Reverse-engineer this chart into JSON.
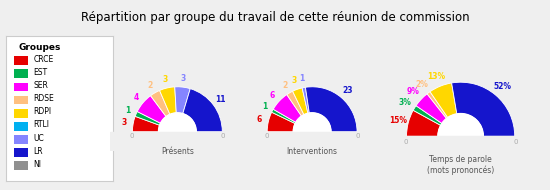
{
  "title": "Répartition par groupe du travail de cette réunion de commission",
  "groups": [
    "CRCE",
    "EST",
    "SER",
    "RDSE",
    "RDPI",
    "RTLI",
    "UC",
    "LR",
    "NI"
  ],
  "colors": [
    "#e60000",
    "#00b050",
    "#ff00ff",
    "#ffc080",
    "#ffd700",
    "#00b0f0",
    "#8585ff",
    "#1515cc",
    "#909090"
  ],
  "presents": [
    3,
    1,
    4,
    2,
    3,
    0,
    3,
    11,
    0
  ],
  "interventions": [
    6,
    1,
    6,
    2,
    3,
    0,
    1,
    23,
    0
  ],
  "temps_parole": [
    15,
    3,
    9,
    2,
    13,
    0,
    0,
    52,
    0
  ],
  "labels_presents": [
    "3",
    "1",
    "4",
    "2",
    "3",
    "0",
    "3",
    "11",
    "0"
  ],
  "labels_interventions": [
    "6",
    "1",
    "6",
    "2",
    "3",
    "0",
    "1",
    "23",
    "0"
  ],
  "labels_temps": [
    "15%",
    "3%",
    "9%",
    "2%",
    "13%",
    "0%",
    "0%",
    "52%",
    "0%"
  ],
  "subtitle1": "Présents",
  "subtitle2": "Interventions",
  "subtitle3": "Temps de parole\n(mots prononcés)",
  "background_color": "#efefef",
  "legend_bg": "#ffffff",
  "legend_title": "Groupes",
  "zero_label_color": "#aaaaaa",
  "subtitle_color": "#555555"
}
